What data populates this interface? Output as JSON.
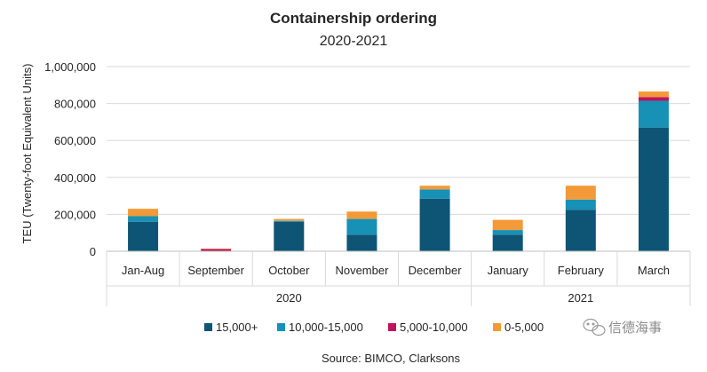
{
  "chart_data": {
    "type": "bar",
    "stacked": true,
    "title": "Containership ordering",
    "subtitle": "2020-2021",
    "ylabel": "TEU (Twenty-foot Equivalent Units)",
    "ylim": [
      0,
      1000000
    ],
    "yticks": [
      "0",
      "200,000",
      "400,000",
      "600,000",
      "800,000",
      "1,000,000"
    ],
    "ytick_values": [
      0,
      200000,
      400000,
      600000,
      800000,
      1000000
    ],
    "grid": true,
    "categories": [
      "Jan-Aug",
      "September",
      "October",
      "November",
      "December",
      "January",
      "February",
      "March"
    ],
    "groups": [
      {
        "label": "2020",
        "count": 5
      },
      {
        "label": "2021",
        "count": 3
      }
    ],
    "series": [
      {
        "name": "15,000+",
        "color": "#0e5575",
        "values": [
          160000,
          0,
          160000,
          90000,
          285000,
          90000,
          225000,
          670000
        ]
      },
      {
        "name": "10,000-15,000",
        "color": "#1791b5",
        "values": [
          30000,
          0,
          5000,
          85000,
          50000,
          25000,
          55000,
          145000
        ]
      },
      {
        "name": "5,000-10,000",
        "color": "#c0135b",
        "values": [
          0,
          12000,
          0,
          0,
          0,
          0,
          0,
          20000
        ]
      },
      {
        "name": "0-5,000",
        "color": "#f29a38",
        "values": [
          40000,
          2000,
          10000,
          40000,
          20000,
          55000,
          75000,
          30000
        ]
      }
    ],
    "legend_position": "bottom"
  },
  "source": "Source: BIMCO, Clarksons",
  "watermark": {
    "text": "信德海事",
    "icon": "wechat-icon"
  }
}
